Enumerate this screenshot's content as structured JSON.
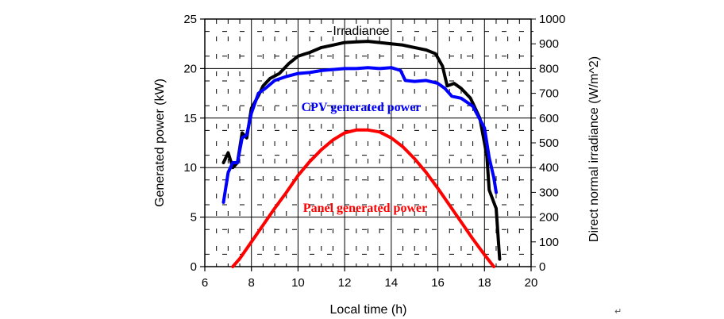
{
  "chart_data": {
    "type": "line",
    "x_axis": {
      "label": "Local time (h)",
      "range": [
        6,
        20
      ],
      "ticks": [
        6,
        8,
        10,
        12,
        14,
        16,
        18,
        20
      ]
    },
    "y_left": {
      "label": "Generated power (kW)",
      "range": [
        0,
        25
      ],
      "ticks": [
        0,
        5,
        10,
        15,
        20,
        25
      ]
    },
    "y_right": {
      "label": "Direct normal irradiance (W/m^2)",
      "range": [
        0,
        1000
      ],
      "ticks": [
        0,
        100,
        200,
        300,
        400,
        500,
        600,
        700,
        800,
        900,
        1000
      ]
    },
    "grid": true,
    "series": [
      {
        "name": "Irradiance",
        "axis": "right",
        "color": "#000000",
        "points": [
          [
            6.8,
            420
          ],
          [
            7.0,
            460
          ],
          [
            7.2,
            400
          ],
          [
            7.4,
            420
          ],
          [
            7.6,
            540
          ],
          [
            7.8,
            520
          ],
          [
            8.0,
            640
          ],
          [
            8.3,
            690
          ],
          [
            8.5,
            730
          ],
          [
            8.8,
            760
          ],
          [
            9.2,
            780
          ],
          [
            9.6,
            820
          ],
          [
            10.0,
            850
          ],
          [
            10.5,
            865
          ],
          [
            11.0,
            885
          ],
          [
            11.5,
            895
          ],
          [
            12.0,
            905
          ],
          [
            12.5,
            908
          ],
          [
            13.0,
            910
          ],
          [
            13.5,
            905
          ],
          [
            14.0,
            900
          ],
          [
            14.5,
            895
          ],
          [
            15.0,
            885
          ],
          [
            15.5,
            875
          ],
          [
            15.9,
            860
          ],
          [
            16.2,
            810
          ],
          [
            16.4,
            730
          ],
          [
            16.7,
            740
          ],
          [
            17.0,
            720
          ],
          [
            17.4,
            680
          ],
          [
            17.8,
            600
          ],
          [
            18.1,
            450
          ],
          [
            18.2,
            310
          ],
          [
            18.4,
            260
          ],
          [
            18.5,
            235
          ],
          [
            18.65,
            30
          ]
        ]
      },
      {
        "name": "CPV generated power",
        "axis": "left",
        "color": "#0000ff",
        "points": [
          [
            6.8,
            6.5
          ],
          [
            7.0,
            9.5
          ],
          [
            7.2,
            10.5
          ],
          [
            7.4,
            10.5
          ],
          [
            7.6,
            13.0
          ],
          [
            7.8,
            13.3
          ],
          [
            8.0,
            15.5
          ],
          [
            8.3,
            17.5
          ],
          [
            8.6,
            18.0
          ],
          [
            9.0,
            18.8
          ],
          [
            9.5,
            19.2
          ],
          [
            10.0,
            19.5
          ],
          [
            10.5,
            19.6
          ],
          [
            11.0,
            19.8
          ],
          [
            11.5,
            19.9
          ],
          [
            12.0,
            20.0
          ],
          [
            12.5,
            20.0
          ],
          [
            13.0,
            20.1
          ],
          [
            13.5,
            20.0
          ],
          [
            14.0,
            20.1
          ],
          [
            14.4,
            19.8
          ],
          [
            14.6,
            18.8
          ],
          [
            15.0,
            18.7
          ],
          [
            15.5,
            18.8
          ],
          [
            16.0,
            18.5
          ],
          [
            16.3,
            18.0
          ],
          [
            16.6,
            17.2
          ],
          [
            17.0,
            17.0
          ],
          [
            17.5,
            16.2
          ],
          [
            18.0,
            14.0
          ],
          [
            18.2,
            11.0
          ],
          [
            18.4,
            9.0
          ],
          [
            18.5,
            7.5
          ]
        ]
      },
      {
        "name": "Panel generated power",
        "axis": "left",
        "color": "#ff0000",
        "points": [
          [
            7.2,
            0.0
          ],
          [
            7.5,
            0.8
          ],
          [
            8.0,
            2.5
          ],
          [
            8.5,
            4.2
          ],
          [
            9.0,
            5.9
          ],
          [
            9.5,
            7.5
          ],
          [
            10.0,
            9.2
          ],
          [
            10.5,
            10.6
          ],
          [
            11.0,
            11.8
          ],
          [
            11.5,
            12.8
          ],
          [
            12.0,
            13.5
          ],
          [
            12.5,
            13.8
          ],
          [
            13.0,
            13.8
          ],
          [
            13.5,
            13.6
          ],
          [
            14.0,
            13.0
          ],
          [
            14.5,
            12.1
          ],
          [
            15.0,
            10.9
          ],
          [
            15.5,
            9.5
          ],
          [
            16.0,
            7.9
          ],
          [
            16.5,
            6.2
          ],
          [
            17.0,
            4.5
          ],
          [
            17.5,
            2.8
          ],
          [
            18.0,
            1.2
          ],
          [
            18.4,
            0.0
          ]
        ]
      }
    ],
    "annotations": [
      {
        "text": "Irradiance",
        "color": "#000000"
      },
      {
        "text": "CPV generated power",
        "color": "#0000ff"
      },
      {
        "text": "Panel generated power",
        "color": "#ff0000"
      }
    ]
  },
  "stray_mark": "↵"
}
